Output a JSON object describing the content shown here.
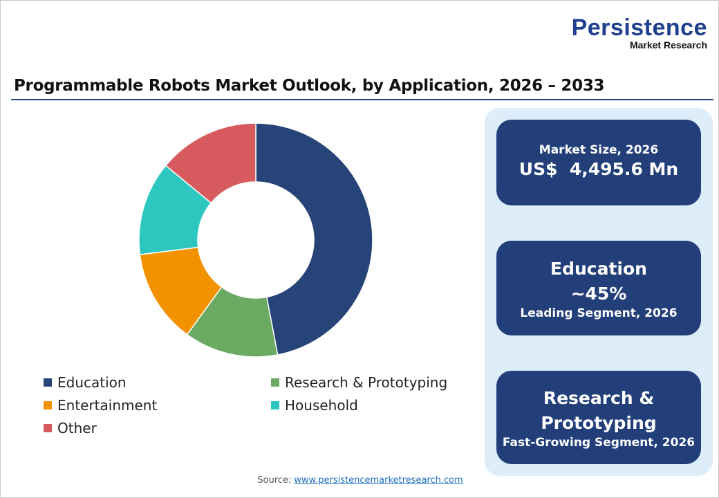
{
  "logo": {
    "line1": "Persistence",
    "line2": "Market Research"
  },
  "title": "Programmable Robots Market Outlook, by Application, 2026 – 2033",
  "chart_data": {
    "type": "pie",
    "donut": true,
    "categories": [
      "Education",
      "Research & Prototyping",
      "Entertainment",
      "Household",
      "Other"
    ],
    "values": [
      47,
      13,
      13,
      13,
      14
    ],
    "colors": [
      "#264478",
      "#6aaa62",
      "#f39200",
      "#2ec7c0",
      "#d65a5e"
    ],
    "legend_position": "bottom"
  },
  "panel": {
    "card1": {
      "label": "Market Size, 2026",
      "value": "US$  4,495.6 Mn"
    },
    "card2": {
      "title": "Education",
      "value": "~45%",
      "label": "Leading Segment, 2026"
    },
    "card3": {
      "title_line1": "Research &",
      "title_line2": "Prototyping",
      "label": "Fast-Growing Segment, 2026"
    }
  },
  "source": {
    "label": "Source:",
    "link": "www.persistencemarketresearch.com"
  }
}
